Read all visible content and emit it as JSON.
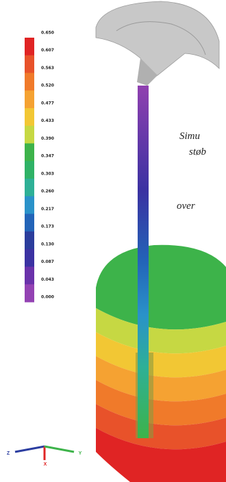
{
  "legend": {
    "labels": [
      "0.650",
      "0.607",
      "0.563",
      "0.520",
      "0.477",
      "0.433",
      "0.390",
      "0.347",
      "0.303",
      "0.260",
      "0.217",
      "0.173",
      "0.130",
      "0.087",
      "0.043",
      "0.000"
    ],
    "colors": [
      "#e02424",
      "#e8522a",
      "#f07a2a",
      "#f5a232",
      "#f2c734",
      "#c6d843",
      "#3db34a",
      "#2fb266",
      "#2eb096",
      "#2a92c9",
      "#2364b8",
      "#2b3d9c",
      "#3b32a2",
      "#6a32aa",
      "#9342b3"
    ]
  },
  "caption": {
    "lines": [
      "Simu",
      "støb",
      "over"
    ]
  },
  "axes": {
    "labels": [
      "Z",
      "X",
      "Y"
    ]
  }
}
